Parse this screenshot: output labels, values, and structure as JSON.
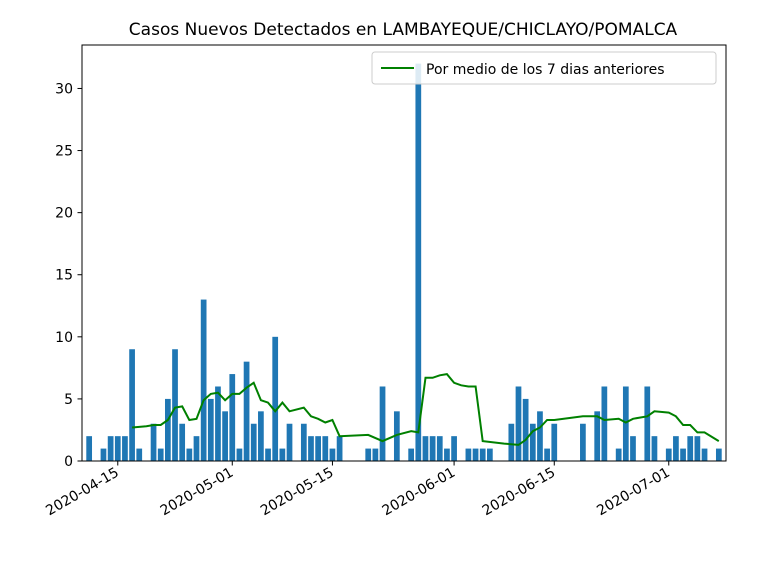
{
  "chart_data": {
    "type": "bar",
    "title": "Casos Nuevos Detectados en LAMBAYEQUE/CHICLAYO/POMALCA",
    "x_tick_labels": [
      "2020-04-15",
      "2020-05-01",
      "2020-05-15",
      "2020-06-01",
      "2020-06-15",
      "2020-07-01"
    ],
    "y_ticks": [
      0,
      5,
      10,
      15,
      20,
      25,
      30
    ],
    "xlim": [
      "2020-04-10",
      "2020-07-09"
    ],
    "ylim": [
      0,
      33.5
    ],
    "legend": {
      "label": "Por medio de los 7 dias anteriores",
      "position": "upper right"
    },
    "bar_color": "#1f77b4",
    "line_color": "#008000",
    "bars": {
      "x": [
        "2020-04-11",
        "2020-04-13",
        "2020-04-14",
        "2020-04-15",
        "2020-04-16",
        "2020-04-17",
        "2020-04-18",
        "2020-04-20",
        "2020-04-21",
        "2020-04-22",
        "2020-04-23",
        "2020-04-24",
        "2020-04-25",
        "2020-04-26",
        "2020-04-27",
        "2020-04-28",
        "2020-04-29",
        "2020-04-30",
        "2020-05-01",
        "2020-05-02",
        "2020-05-03",
        "2020-05-04",
        "2020-05-05",
        "2020-05-06",
        "2020-05-07",
        "2020-05-08",
        "2020-05-09",
        "2020-05-11",
        "2020-05-12",
        "2020-05-13",
        "2020-05-14",
        "2020-05-15",
        "2020-05-16",
        "2020-05-20",
        "2020-05-21",
        "2020-05-22",
        "2020-05-24",
        "2020-05-26",
        "2020-05-27",
        "2020-05-28",
        "2020-05-29",
        "2020-05-30",
        "2020-05-31",
        "2020-06-01",
        "2020-06-03",
        "2020-06-04",
        "2020-06-05",
        "2020-06-06",
        "2020-06-09",
        "2020-06-10",
        "2020-06-11",
        "2020-06-12",
        "2020-06-13",
        "2020-06-14",
        "2020-06-15",
        "2020-06-19",
        "2020-06-21",
        "2020-06-22",
        "2020-06-24",
        "2020-06-25",
        "2020-06-26",
        "2020-06-28",
        "2020-06-29",
        "2020-07-01",
        "2020-07-02",
        "2020-07-03",
        "2020-07-04",
        "2020-07-05",
        "2020-07-06",
        "2020-07-08"
      ],
      "values": [
        2,
        1,
        2,
        2,
        2,
        9,
        1,
        3,
        1,
        5,
        9,
        3,
        1,
        2,
        13,
        5,
        6,
        4,
        7,
        1,
        8,
        3,
        4,
        1,
        10,
        1,
        3,
        3,
        2,
        2,
        2,
        1,
        2,
        1,
        1,
        6,
        4,
        1,
        32,
        2,
        2,
        2,
        1,
        2,
        1,
        1,
        1,
        1,
        3,
        6,
        5,
        3,
        4,
        1,
        3,
        3,
        4,
        6,
        1,
        6,
        2,
        6,
        2,
        1,
        2,
        1,
        2,
        2,
        1,
        1
      ]
    },
    "rolling_mean": {
      "x": [
        "2020-04-17",
        "2020-04-19",
        "2020-04-20",
        "2020-04-21",
        "2020-04-22",
        "2020-04-23",
        "2020-04-24",
        "2020-04-25",
        "2020-04-26",
        "2020-04-27",
        "2020-04-28",
        "2020-04-29",
        "2020-04-30",
        "2020-05-01",
        "2020-05-02",
        "2020-05-03",
        "2020-05-04",
        "2020-05-05",
        "2020-05-06",
        "2020-05-07",
        "2020-05-08",
        "2020-05-09",
        "2020-05-11",
        "2020-05-12",
        "2020-05-13",
        "2020-05-14",
        "2020-05-15",
        "2020-05-16",
        "2020-05-20",
        "2020-05-22",
        "2020-05-24",
        "2020-05-26",
        "2020-05-27",
        "2020-05-28",
        "2020-05-29",
        "2020-05-30",
        "2020-05-31",
        "2020-06-01",
        "2020-06-02",
        "2020-06-03",
        "2020-06-04",
        "2020-06-05",
        "2020-06-08",
        "2020-06-10",
        "2020-06-11",
        "2020-06-12",
        "2020-06-13",
        "2020-06-14",
        "2020-06-15",
        "2020-06-19",
        "2020-06-21",
        "2020-06-22",
        "2020-06-24",
        "2020-06-25",
        "2020-06-26",
        "2020-06-28",
        "2020-06-29",
        "2020-07-01",
        "2020-07-02",
        "2020-07-03",
        "2020-07-04",
        "2020-07-05",
        "2020-07-06",
        "2020-07-08"
      ],
      "values": [
        2.7,
        2.8,
        2.9,
        2.9,
        3.3,
        4.3,
        4.4,
        3.3,
        3.4,
        4.9,
        5.4,
        5.5,
        4.9,
        5.4,
        5.4,
        5.9,
        6.3,
        4.9,
        4.7,
        4.0,
        4.7,
        4.0,
        4.3,
        3.6,
        3.4,
        3.1,
        3.3,
        2.0,
        2.1,
        1.6,
        2.1,
        2.4,
        2.3,
        6.7,
        6.7,
        6.9,
        7.0,
        6.3,
        6.1,
        6.0,
        6.0,
        1.6,
        1.4,
        1.3,
        1.7,
        2.4,
        2.7,
        3.3,
        3.3,
        3.6,
        3.6,
        3.3,
        3.4,
        3.1,
        3.4,
        3.6,
        4.0,
        3.9,
        3.6,
        2.9,
        2.9,
        2.3,
        2.3,
        1.6
      ]
    }
  }
}
